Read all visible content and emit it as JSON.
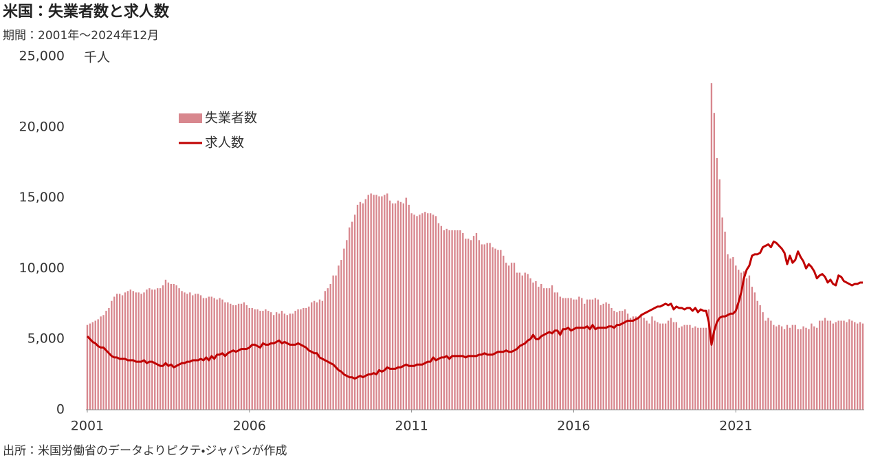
{
  "chart_data": {
    "type": "combo",
    "title": "米国：失業者数と求人数",
    "subtitle": "期間：2001年～2024年12月",
    "y_unit": "千人",
    "source": "出所：米国労働省のデータよりピクテ・ジャパンが作成",
    "categories": [
      "2001",
      null,
      null,
      null,
      null,
      null,
      null,
      null,
      null,
      null,
      null,
      null,
      null,
      null,
      null,
      null,
      null,
      null,
      null,
      null,
      null,
      null,
      null,
      null,
      null,
      null,
      null,
      null,
      null,
      null,
      null,
      null,
      null,
      null,
      null,
      null,
      null,
      null,
      null,
      null,
      null,
      null,
      null,
      null,
      null,
      null,
      null,
      null,
      null,
      null,
      null,
      null,
      null,
      null,
      null,
      null,
      null,
      null,
      null,
      null,
      "2006",
      null,
      null,
      null,
      null,
      null,
      null,
      null,
      null,
      null,
      null,
      null,
      null,
      null,
      null,
      null,
      null,
      null,
      null,
      null,
      null,
      null,
      null,
      null,
      null,
      null,
      null,
      null,
      null,
      null,
      null,
      null,
      null,
      null,
      null,
      null,
      null,
      null,
      null,
      null,
      null,
      null,
      null,
      null,
      null,
      null,
      null,
      null,
      null,
      null,
      null,
      null,
      null,
      null,
      null,
      null,
      null,
      null,
      null,
      null,
      "2011",
      null,
      null,
      null,
      null,
      null,
      null,
      null,
      null,
      null,
      null,
      null,
      null,
      null,
      null,
      null,
      null,
      null,
      null,
      null,
      null,
      null,
      null,
      null,
      null,
      null,
      null,
      null,
      null,
      null,
      null,
      null,
      null,
      null,
      null,
      null,
      null,
      null,
      null,
      null,
      null,
      null,
      null,
      null,
      null,
      null,
      null,
      null,
      null,
      null,
      null,
      null,
      null,
      null,
      null,
      null,
      null,
      null,
      null,
      null,
      "2016",
      null,
      null,
      null,
      null,
      null,
      null,
      null,
      null,
      null,
      null,
      null,
      null,
      null,
      null,
      null,
      null,
      null,
      null,
      null,
      null,
      null,
      null,
      null,
      null,
      null,
      null,
      null,
      null,
      null,
      null,
      null,
      null,
      null,
      null,
      null,
      null,
      null,
      null,
      null,
      null,
      null,
      null,
      null,
      null,
      null,
      null,
      null,
      null,
      null,
      null,
      null,
      null,
      null,
      null,
      null,
      null,
      null,
      null,
      null,
      "2021",
      null,
      null,
      null,
      null,
      null,
      null,
      null,
      null,
      null,
      null,
      null,
      null,
      null,
      null,
      null,
      null,
      null,
      null,
      null,
      null,
      null,
      null,
      null,
      null,
      null,
      null,
      null,
      null,
      null,
      null,
      null,
      null,
      null,
      null,
      null,
      null,
      null,
      null,
      null,
      null,
      null,
      null,
      null,
      null,
      null,
      null,
      null
    ],
    "series": [
      {
        "name": "失業者数",
        "type": "bar",
        "color": "#d8878e",
        "values": [
          6000,
          6100,
          6200,
          6300,
          6400,
          6600,
          6700,
          7000,
          7200,
          7700,
          8000,
          8200,
          8200,
          8100,
          8300,
          8400,
          8500,
          8400,
          8300,
          8300,
          8200,
          8300,
          8500,
          8600,
          8500,
          8500,
          8600,
          8600,
          8800,
          9200,
          9000,
          8900,
          8900,
          8800,
          8600,
          8400,
          8300,
          8200,
          8300,
          8100,
          8200,
          8200,
          8100,
          7900,
          7900,
          8000,
          8000,
          7900,
          7800,
          7900,
          7800,
          7600,
          7600,
          7500,
          7400,
          7400,
          7500,
          7500,
          7600,
          7400,
          7200,
          7200,
          7100,
          7100,
          7000,
          7000,
          7100,
          7000,
          6900,
          6700,
          6900,
          6800,
          7000,
          6800,
          6700,
          6800,
          6800,
          7000,
          7100,
          7100,
          7200,
          7200,
          7300,
          7600,
          7700,
          7600,
          7800,
          7700,
          8400,
          8600,
          8900,
          9500,
          9500,
          10200,
          10600,
          11400,
          12000,
          12900,
          13300,
          13800,
          14500,
          14700,
          14600,
          14900,
          15200,
          15300,
          15200,
          15200,
          15100,
          15100,
          15200,
          15300,
          14800,
          14600,
          14600,
          14800,
          14700,
          14600,
          15000,
          14500,
          13900,
          13800,
          13700,
          13800,
          13900,
          14000,
          13900,
          13900,
          13800,
          13700,
          13200,
          13000,
          12700,
          12800,
          12700,
          12700,
          12700,
          12700,
          12700,
          12500,
          12100,
          12100,
          12000,
          12300,
          12500,
          12000,
          11700,
          11700,
          11800,
          11800,
          11500,
          11400,
          11300,
          11300,
          10900,
          10400,
          10200,
          10400,
          10400,
          9700,
          9700,
          9500,
          9700,
          9600,
          9300,
          9000,
          9100,
          8700,
          8900,
          8600,
          8600,
          8600,
          8800,
          8300,
          8300,
          8000,
          7900,
          7900,
          7900,
          7900,
          7800,
          7800,
          8000,
          7900,
          7500,
          7800,
          7800,
          7800,
          7900,
          7800,
          7400,
          7500,
          7600,
          7500,
          7200,
          7000,
          6900,
          7000,
          7000,
          7100,
          6800,
          6500,
          6600,
          6600,
          6600,
          6700,
          6500,
          6300,
          6100,
          6600,
          6300,
          6200,
          6100,
          6100,
          6100,
          6300,
          6500,
          6200,
          6200,
          5800,
          5900,
          6000,
          6000,
          6000,
          5800,
          5900,
          5800,
          5800,
          5800,
          5800,
          7100,
          23100,
          21000,
          17800,
          16300,
          13600,
          12600,
          11000,
          10700,
          10800,
          10200,
          9900,
          9700,
          9800,
          9300,
          9500,
          8700,
          8300,
          7700,
          7400,
          6900,
          6300,
          6500,
          6300,
          6000,
          5900,
          6000,
          5900,
          5700,
          6000,
          5800,
          6000,
          6000,
          5700,
          5700,
          5900,
          5800,
          5700,
          6100,
          5900,
          5800,
          6300,
          6300,
          6500,
          6300,
          6300,
          6100,
          6200,
          6300,
          6300,
          6300,
          6200,
          6400,
          6300,
          6200,
          6100,
          6200,
          6100
        ]
      },
      {
        "name": "求人数",
        "type": "line",
        "color": "#c00000",
        "values": [
          5200,
          5000,
          4800,
          4700,
          4500,
          4400,
          4400,
          4200,
          4000,
          3800,
          3700,
          3700,
          3600,
          3600,
          3600,
          3500,
          3500,
          3500,
          3400,
          3400,
          3400,
          3500,
          3300,
          3400,
          3400,
          3300,
          3200,
          3100,
          3100,
          3300,
          3100,
          3200,
          3000,
          3100,
          3200,
          3300,
          3300,
          3400,
          3400,
          3500,
          3500,
          3500,
          3600,
          3500,
          3700,
          3500,
          3800,
          3600,
          3900,
          3900,
          4000,
          3800,
          4000,
          4100,
          4200,
          4100,
          4200,
          4300,
          4300,
          4300,
          4400,
          4600,
          4600,
          4500,
          4400,
          4700,
          4600,
          4600,
          4700,
          4700,
          4800,
          4900,
          4700,
          4800,
          4700,
          4600,
          4600,
          4600,
          4700,
          4600,
          4500,
          4400,
          4200,
          4100,
          4000,
          4000,
          3700,
          3600,
          3500,
          3400,
          3300,
          3200,
          3000,
          2800,
          2700,
          2500,
          2400,
          2300,
          2300,
          2200,
          2300,
          2400,
          2300,
          2400,
          2500,
          2500,
          2600,
          2500,
          2800,
          2700,
          2800,
          3000,
          2900,
          2900,
          2900,
          3000,
          3000,
          3100,
          3200,
          3100,
          3100,
          3100,
          3200,
          3200,
          3200,
          3300,
          3400,
          3400,
          3700,
          3500,
          3600,
          3700,
          3700,
          3800,
          3600,
          3800,
          3800,
          3800,
          3800,
          3800,
          3700,
          3800,
          3800,
          3800,
          3800,
          3900,
          3900,
          4000,
          3900,
          3900,
          3900,
          4000,
          4100,
          4100,
          4100,
          4200,
          4100,
          4100,
          4200,
          4300,
          4500,
          4600,
          4700,
          4900,
          5000,
          5300,
          5000,
          5000,
          5200,
          5300,
          5400,
          5500,
          5400,
          5600,
          5600,
          5300,
          5700,
          5700,
          5800,
          5600,
          5700,
          5800,
          5800,
          5800,
          5800,
          5900,
          5700,
          6000,
          5700,
          5800,
          5800,
          5800,
          5800,
          5900,
          5900,
          5800,
          6000,
          6000,
          6100,
          6200,
          6300,
          6300,
          6300,
          6400,
          6500,
          6700,
          6800,
          6900,
          7000,
          7100,
          7200,
          7300,
          7300,
          7400,
          7500,
          7400,
          7500,
          7100,
          7300,
          7200,
          7200,
          7100,
          7200,
          7200,
          7000,
          7200,
          6900,
          7100,
          7000,
          7000,
          6200,
          4600,
          5600,
          6200,
          6500,
          6600,
          6600,
          6700,
          6800,
          6800,
          7000,
          7600,
          8300,
          9300,
          9900,
          10200,
          10900,
          11000,
          11000,
          11100,
          11500,
          11600,
          11700,
          11500,
          11900,
          11800,
          11600,
          11400,
          11100,
          10300,
          10900,
          10400,
          10600,
          11200,
          10800,
          10500,
          10000,
          10300,
          10100,
          9800,
          9300,
          9500,
          9600,
          9400,
          9000,
          9200,
          8900,
          8800,
          9500,
          9400,
          9100,
          9000,
          8900,
          8800,
          8900,
          8900,
          9000,
          9000
        ]
      }
    ],
    "ylim": [
      0,
      25000
    ],
    "yticks": [
      0,
      {
        "value": 5000,
        "label": "5,000"
      },
      {
        "value": 10000,
        "label": "10,000"
      },
      {
        "value": 15000,
        "label": "15,000"
      },
      {
        "value": 20000,
        "label": "20,000"
      },
      {
        "value": 25000,
        "label": "25,000"
      }
    ],
    "grid": false,
    "legend": "upper left"
  }
}
